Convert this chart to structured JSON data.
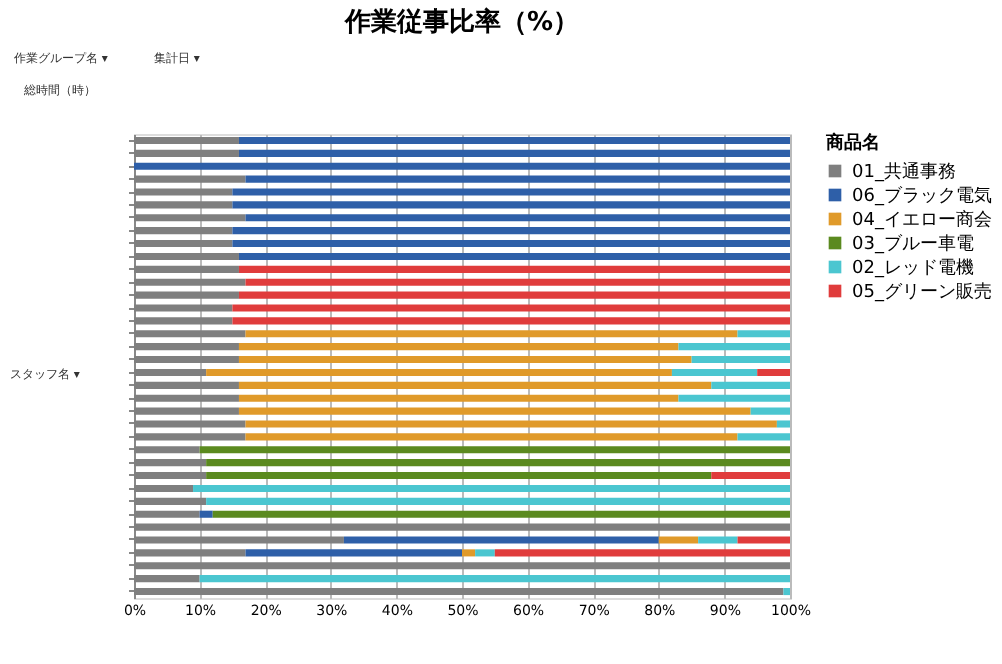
{
  "chart_data": {
    "type": "bar",
    "orientation": "horizontal",
    "stacked": true,
    "title": "作業従事比率（%）",
    "legend_title": "商品名",
    "annotations": [
      "作業グループ名 ▾",
      "集計日 ▾",
      "総時間（時）",
      "スタッフ名 ▾"
    ],
    "categories": [
      null,
      null,
      null,
      null,
      null,
      null,
      null,
      null,
      null,
      null,
      null,
      null,
      null,
      null,
      null,
      null,
      null,
      null,
      null,
      null,
      null,
      null,
      null,
      null,
      null,
      null,
      null,
      null,
      null,
      null,
      null,
      null,
      null,
      null,
      null,
      null
    ],
    "series": [
      {
        "name": "01_共通事務",
        "color": "#7f7f7f",
        "values": [
          16,
          16,
          null,
          17,
          15,
          15,
          17,
          15,
          15,
          16,
          16,
          17,
          16,
          15,
          15,
          17,
          16,
          16,
          11,
          16,
          16,
          16,
          17,
          17,
          10,
          11,
          11,
          9,
          11,
          10,
          100,
          32,
          17,
          100,
          10,
          99
        ]
      },
      {
        "name": "06_ブラック電気",
        "color": "#2e5fa8",
        "values": [
          84,
          84,
          100,
          83,
          85,
          85,
          83,
          85,
          85,
          84,
          null,
          null,
          null,
          null,
          null,
          null,
          null,
          null,
          null,
          null,
          null,
          null,
          null,
          null,
          null,
          null,
          null,
          null,
          null,
          2,
          null,
          48,
          33,
          null,
          null,
          null
        ]
      },
      {
        "name": "04_イエロー商会",
        "color": "#e09a2a",
        "values": [
          null,
          null,
          null,
          null,
          null,
          null,
          null,
          null,
          null,
          null,
          null,
          null,
          null,
          null,
          null,
          75,
          67,
          69,
          71,
          72,
          67,
          78,
          81,
          75,
          null,
          null,
          null,
          null,
          null,
          null,
          null,
          6,
          2,
          null,
          null,
          null
        ]
      },
      {
        "name": "03_ブルー車電",
        "color": "#5b8a1f",
        "values": [
          null,
          null,
          null,
          null,
          null,
          null,
          null,
          null,
          null,
          null,
          null,
          null,
          null,
          null,
          null,
          null,
          null,
          null,
          null,
          null,
          null,
          null,
          null,
          null,
          90,
          89,
          77,
          null,
          null,
          88,
          null,
          null,
          null,
          null,
          null,
          null
        ]
      },
      {
        "name": "02_レッド電機",
        "color": "#4bc6d0",
        "values": [
          null,
          null,
          null,
          null,
          null,
          null,
          null,
          null,
          null,
          null,
          null,
          null,
          null,
          null,
          null,
          8,
          17,
          15,
          13,
          12,
          17,
          6,
          2,
          8,
          null,
          null,
          null,
          91,
          89,
          null,
          null,
          6,
          3,
          null,
          90,
          1
        ]
      },
      {
        "name": "05_グリーン販売",
        "color": "#e03c3c",
        "values": [
          null,
          null,
          null,
          null,
          null,
          null,
          null,
          null,
          null,
          null,
          84,
          83,
          84,
          85,
          85,
          null,
          null,
          null,
          5,
          null,
          null,
          null,
          null,
          null,
          null,
          null,
          12,
          null,
          null,
          null,
          null,
          8,
          45,
          null,
          null,
          null
        ]
      }
    ],
    "xlim": [
      0,
      100
    ],
    "xticks": [
      {
        "value": 0,
        "label": "0%"
      },
      {
        "value": 10,
        "label": "10%"
      },
      {
        "value": 20,
        "label": "20%"
      },
      {
        "value": 30,
        "label": "30%"
      },
      {
        "value": 40,
        "label": "40%"
      },
      {
        "value": 50,
        "label": "50%"
      },
      {
        "value": 60,
        "label": "60%"
      },
      {
        "value": 70,
        "label": "70%"
      },
      {
        "value": 80,
        "label": "80%"
      },
      {
        "value": 90,
        "label": "90%"
      },
      {
        "value": 100,
        "label": "100%"
      }
    ],
    "grid": "x",
    "legend": "right"
  }
}
